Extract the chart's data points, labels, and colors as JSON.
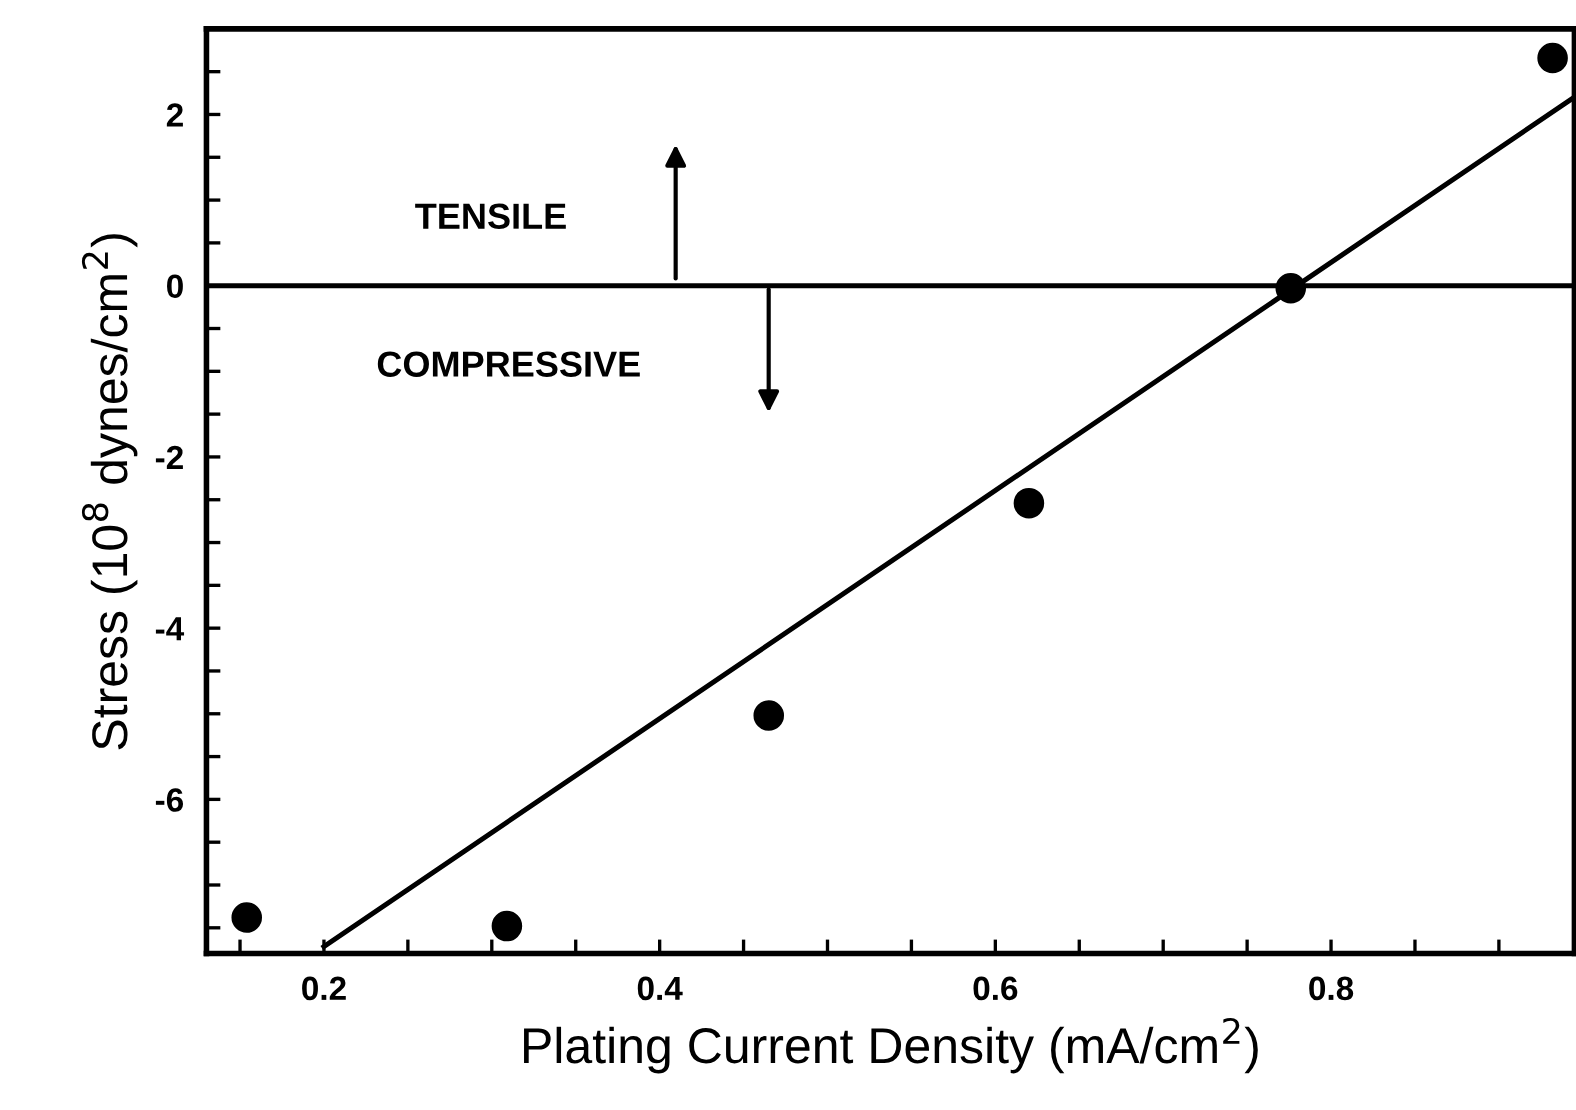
{
  "chart_data": {
    "type": "scatter",
    "xlabel": "Plating Current Density (mA/cm$^{2}$)",
    "ylabel": "Stress (10$^{8}$ dynes/cm$^{2}$)",
    "xlim": [
      0.13,
      0.945
    ],
    "ylim": [
      -7.8,
      3
    ],
    "xticks": [
      {
        "value": 0.15,
        "label": null
      },
      {
        "value": 0.2,
        "label": "0.2"
      },
      {
        "value": 0.25,
        "label": null
      },
      {
        "value": 0.3,
        "label": null
      },
      {
        "value": 0.35,
        "label": null
      },
      {
        "value": 0.4,
        "label": "0.4"
      },
      {
        "value": 0.45,
        "label": null
      },
      {
        "value": 0.5,
        "label": null
      },
      {
        "value": 0.55,
        "label": null
      },
      {
        "value": 0.6,
        "label": "0.6"
      },
      {
        "value": 0.65,
        "label": null
      },
      {
        "value": 0.7,
        "label": null
      },
      {
        "value": 0.75,
        "label": null
      },
      {
        "value": 0.8,
        "label": "0.8"
      },
      {
        "value": 0.85,
        "label": null
      },
      {
        "value": 0.9,
        "label": null
      }
    ],
    "yticks": [
      {
        "value": -7.5,
        "label": null
      },
      {
        "value": -7,
        "label": null
      },
      {
        "value": -6.5,
        "label": null
      },
      {
        "value": -6,
        "label": "-6"
      },
      {
        "value": -5.5,
        "label": null
      },
      {
        "value": -5,
        "label": null
      },
      {
        "value": -4.5,
        "label": null
      },
      {
        "value": -4,
        "label": "-4"
      },
      {
        "value": -3.5,
        "label": null
      },
      {
        "value": -3,
        "label": null
      },
      {
        "value": -2.5,
        "label": null
      },
      {
        "value": -2,
        "label": "-2"
      },
      {
        "value": -1.5,
        "label": null
      },
      {
        "value": -1,
        "label": null
      },
      {
        "value": -0.5,
        "label": null
      },
      0,
      {
        "value": 0.5,
        "label": null
      },
      {
        "value": 1,
        "label": null
      },
      {
        "value": 1.5,
        "label": null
      },
      2,
      {
        "value": 2.5,
        "label": null
      }
    ],
    "marker": "circle",
    "grid": false,
    "series": [
      {
        "color": "#000000",
        "x": [
          0.154,
          0.309,
          0.465,
          0.62,
          0.776,
          0.932
        ],
        "values": [
          -7.38,
          -7.48,
          -5.02,
          -2.54,
          -0.03,
          2.66
        ]
      },
      {
        "type": "line",
        "color": "#000000",
        "marker": "none",
        "line_style": "solid",
        "x": [
          0.2,
          0.944
        ],
        "values": [
          -7.72,
          2.19
        ]
      }
    ],
    "ref_lines": [
      {
        "axis": "y",
        "value": 0,
        "color": "#000000",
        "line_style": "solid"
      }
    ],
    "annotations": [
      "TENSILE",
      "COMPRESSIVE"
    ]
  }
}
